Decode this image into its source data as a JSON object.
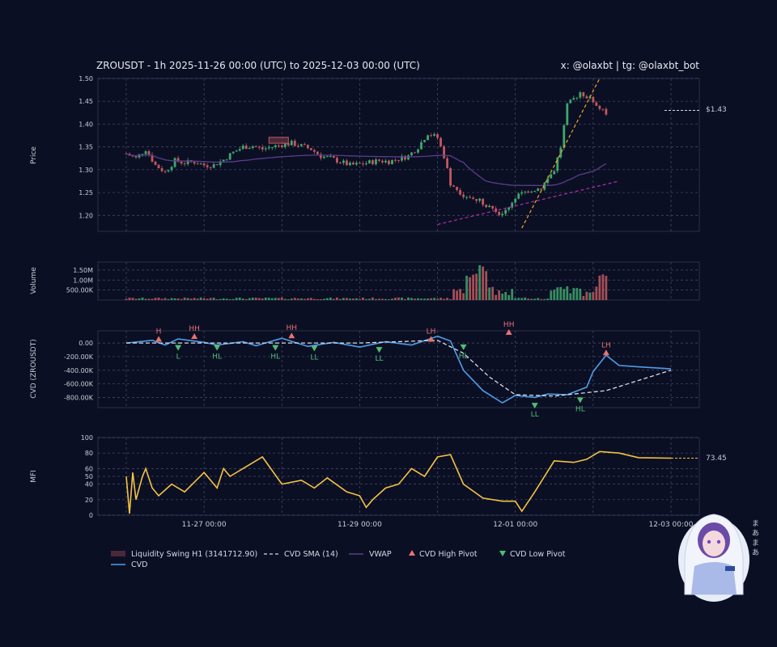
{
  "header": {
    "title": "ZROUSDT - 1h 2025-11-26 00:00 (UTC) to 2025-12-03 00:00 (UTC)",
    "credits": "x: @olaxbt | tg: @olaxbt_bot"
  },
  "panels": {
    "price_label": "Price",
    "volume_label": "Volume",
    "cvd_label": "CVD (ZROUSDT)",
    "mfi_label": "MFI",
    "price_last": "$1.43",
    "mfi_last": "73.45"
  },
  "colors": {
    "background": "#0b0f24",
    "up": "#3fa66c",
    "down": "#c0595e",
    "vwap": "#5a3d8a",
    "cvd": "#4f9de6",
    "cvd_sma": "#d9dbe4",
    "mfi": "#f4c343",
    "pivot_high": "#e8716f",
    "pivot_low": "#4fbf73",
    "trend_orange": "#f5a623",
    "trend_magenta": "#b32ea8"
  },
  "mascot": {
    "caption": "まあまあ"
  },
  "chart_data": [
    {
      "type": "candlestick",
      "name": "Price",
      "ylabel": "Price",
      "ylim": [
        1.165,
        1.5
      ],
      "yticks": [
        "1.20",
        "1.25",
        "1.30",
        "1.35",
        "1.40",
        "1.45",
        "1.50"
      ],
      "x_start": "2025-11-26 00:00",
      "x_end": "2025-12-03 00:00",
      "interval": "1h",
      "close_path": [
        [
          "2025-11-26 00:00",
          1.335
        ],
        [
          "2025-11-26 03:00",
          1.325
        ],
        [
          "2025-11-26 06:00",
          1.345
        ],
        [
          "2025-11-26 09:00",
          1.31
        ],
        [
          "2025-11-26 12:00",
          1.295
        ],
        [
          "2025-11-26 15:00",
          1.32
        ],
        [
          "2025-11-26 18:00",
          1.315
        ],
        [
          "2025-11-26 21:00",
          1.317
        ],
        [
          "2025-11-27 00:00",
          1.31
        ],
        [
          "2025-11-27 03:00",
          1.31
        ],
        [
          "2025-11-27 06:00",
          1.322
        ],
        [
          "2025-11-27 09:00",
          1.338
        ],
        [
          "2025-11-27 12:00",
          1.35
        ],
        [
          "2025-11-27 15:00",
          1.352
        ],
        [
          "2025-11-27 18:00",
          1.345
        ],
        [
          "2025-11-28 00:00",
          1.355
        ],
        [
          "2025-11-28 03:00",
          1.358
        ],
        [
          "2025-11-28 06:00",
          1.352
        ],
        [
          "2025-11-28 09:00",
          1.345
        ],
        [
          "2025-11-28 12:00",
          1.33
        ],
        [
          "2025-11-28 15:00",
          1.325
        ],
        [
          "2025-11-28 21:00",
          1.31
        ],
        [
          "2025-11-29 00:00",
          1.312
        ],
        [
          "2025-11-29 06:00",
          1.32
        ],
        [
          "2025-11-29 09:00",
          1.318
        ],
        [
          "2025-11-29 15:00",
          1.33
        ],
        [
          "2025-11-29 18:00",
          1.35
        ],
        [
          "2025-11-29 21:00",
          1.38
        ],
        [
          "2025-11-30 00:00",
          1.37
        ],
        [
          "2025-11-30 02:00",
          1.33
        ],
        [
          "2025-11-30 04:00",
          1.27
        ],
        [
          "2025-11-30 08:00",
          1.245
        ],
        [
          "2025-11-30 12:00",
          1.235
        ],
        [
          "2025-11-30 16:00",
          1.22
        ],
        [
          "2025-11-30 20:00",
          1.2
        ],
        [
          "2025-12-01 00:00",
          1.24
        ],
        [
          "2025-12-01 04:00",
          1.255
        ],
        [
          "2025-12-01 08:00",
          1.26
        ],
        [
          "2025-12-01 12:00",
          1.3
        ],
        [
          "2025-12-01 14:00",
          1.35
        ],
        [
          "2025-12-01 16:00",
          1.44
        ],
        [
          "2025-12-01 20:00",
          1.47
        ],
        [
          "2025-12-02 00:00",
          1.45
        ],
        [
          "2025-12-02 04:00",
          1.42
        ]
      ],
      "last_price": 1.43,
      "liquidity_zone": {
        "label": "Liquidity Swing H1 (3141712.90)",
        "x": [
          "2025-11-27 20:00",
          "2025-11-28 02:00"
        ],
        "y": [
          1.358,
          1.371
        ]
      }
    },
    {
      "type": "bar",
      "name": "Volume",
      "ylabel": "Volume",
      "ylim": [
        0,
        1900000
      ],
      "yticks": [
        "500.00K",
        "1.00M",
        "1.50M"
      ],
      "peaks": [
        [
          "2025-11-30 10:00",
          1250000
        ],
        [
          "2025-11-30 12:00",
          1550000
        ],
        [
          "2025-11-30 14:00",
          1800000
        ],
        [
          "2025-11-30 16:00",
          700000
        ],
        [
          "2025-12-02 03:00",
          1450000
        ],
        [
          "2025-12-02 05:00",
          900000
        ]
      ]
    },
    {
      "type": "line",
      "name": "CVD",
      "ylabel": "CVD (ZROUSDT)",
      "ylim": [
        -950000,
        180000
      ],
      "yticks": [
        "-800.00K",
        "-600.00K",
        "-400.00K",
        "-200.00K",
        "0.00"
      ],
      "series": [
        {
          "name": "CVD",
          "points": [
            [
              "2025-11-26 00:00",
              0
            ],
            [
              "2025-11-26 08:00",
              40000
            ],
            [
              "2025-11-26 12:00",
              -30000
            ],
            [
              "2025-11-26 16:00",
              60000
            ],
            [
              "2025-11-27 00:00",
              10000
            ],
            [
              "2025-11-27 04:00",
              -30000
            ],
            [
              "2025-11-27 12:00",
              20000
            ],
            [
              "2025-11-27 16:00",
              -40000
            ],
            [
              "2025-11-28 00:00",
              70000
            ],
            [
              "2025-11-28 08:00",
              -50000
            ],
            [
              "2025-11-28 16:00",
              10000
            ],
            [
              "2025-11-29 00:00",
              -60000
            ],
            [
              "2025-11-29 08:00",
              20000
            ],
            [
              "2025-11-29 16:00",
              -30000
            ],
            [
              "2025-11-30 00:00",
              100000
            ],
            [
              "2025-11-30 04:00",
              30000
            ],
            [
              "2025-11-30 08:00",
              -400000
            ],
            [
              "2025-11-30 14:00",
              -700000
            ],
            [
              "2025-11-30 20:00",
              -880000
            ],
            [
              "2025-12-01 00:00",
              -770000
            ],
            [
              "2025-12-01 06:00",
              -800000
            ],
            [
              "2025-12-01 10:00",
              -750000
            ],
            [
              "2025-12-01 16:00",
              -760000
            ],
            [
              "2025-12-01 22:00",
              -650000
            ],
            [
              "2025-12-02 00:00",
              -420000
            ],
            [
              "2025-12-02 04:00",
              -180000
            ],
            [
              "2025-12-02 08:00",
              -330000
            ],
            [
              "2025-12-02 14:00",
              -350000
            ],
            [
              "2025-12-03 00:00",
              -380000
            ]
          ]
        },
        {
          "name": "CVD SMA (14)",
          "points": [
            [
              "2025-11-26 00:00",
              0
            ],
            [
              "2025-11-29 00:00",
              0
            ],
            [
              "2025-11-30 00:00",
              40000
            ],
            [
              "2025-11-30 08:00",
              -150000
            ],
            [
              "2025-11-30 16:00",
              -500000
            ],
            [
              "2025-12-01 00:00",
              -760000
            ],
            [
              "2025-12-01 12:00",
              -780000
            ],
            [
              "2025-12-02 04:00",
              -700000
            ],
            [
              "2025-12-03 00:00",
              -400000
            ]
          ]
        }
      ],
      "pivots": [
        {
          "label": "H",
          "kind": "high",
          "x": "2025-11-26 10:00",
          "y": 20000
        },
        {
          "label": "L",
          "kind": "low",
          "x": "2025-11-26 16:00",
          "y": -30000
        },
        {
          "label": "HH",
          "kind": "high",
          "x": "2025-11-26 21:00",
          "y": 60000
        },
        {
          "label": "HL",
          "kind": "low",
          "x": "2025-11-27 04:00",
          "y": -30000
        },
        {
          "label": "HL",
          "kind": "low",
          "x": "2025-11-27 22:00",
          "y": -30000
        },
        {
          "label": "HH",
          "kind": "high",
          "x": "2025-11-28 03:00",
          "y": 70000
        },
        {
          "label": "LL",
          "kind": "low",
          "x": "2025-11-28 10:00",
          "y": -40000
        },
        {
          "label": "LL",
          "kind": "low",
          "x": "2025-11-29 06:00",
          "y": -60000
        },
        {
          "label": "LH",
          "kind": "high",
          "x": "2025-11-29 22:00",
          "y": 20000
        },
        {
          "label": "HL",
          "kind": "low",
          "x": "2025-11-30 08:00",
          "y": -20000
        },
        {
          "label": "HH",
          "kind": "high",
          "x": "2025-11-30 22:00",
          "y": 120000
        },
        {
          "label": "LL",
          "kind": "low",
          "x": "2025-12-01 06:00",
          "y": -880000
        },
        {
          "label": "HL",
          "kind": "low",
          "x": "2025-12-01 20:00",
          "y": -800000
        },
        {
          "label": "LH",
          "kind": "high",
          "x": "2025-12-02 04:00",
          "y": -180000
        }
      ]
    },
    {
      "type": "line",
      "name": "MFI",
      "ylabel": "MFI",
      "ylim": [
        0,
        100
      ],
      "yticks": [
        "0",
        "20",
        "40",
        "50",
        "60",
        "80",
        "100"
      ],
      "points": [
        [
          "2025-11-26 00:00",
          50
        ],
        [
          "2025-11-26 01:00",
          2
        ],
        [
          "2025-11-26 02:00",
          55
        ],
        [
          "2025-11-26 03:00",
          20
        ],
        [
          "2025-11-26 05:00",
          50
        ],
        [
          "2025-11-26 06:00",
          60
        ],
        [
          "2025-11-26 08:00",
          35
        ],
        [
          "2025-11-26 10:00",
          25
        ],
        [
          "2025-11-26 14:00",
          40
        ],
        [
          "2025-11-26 18:00",
          30
        ],
        [
          "2025-11-27 00:00",
          55
        ],
        [
          "2025-11-27 04:00",
          35
        ],
        [
          "2025-11-27 06:00",
          60
        ],
        [
          "2025-11-27 08:00",
          50
        ],
        [
          "2025-11-27 14:00",
          65
        ],
        [
          "2025-11-27 18:00",
          75
        ],
        [
          "2025-11-28 00:00",
          40
        ],
        [
          "2025-11-28 06:00",
          45
        ],
        [
          "2025-11-28 10:00",
          35
        ],
        [
          "2025-11-28 14:00",
          48
        ],
        [
          "2025-11-28 20:00",
          30
        ],
        [
          "2025-11-29 00:00",
          25
        ],
        [
          "2025-11-29 02:00",
          10
        ],
        [
          "2025-11-29 04:00",
          20
        ],
        [
          "2025-11-29 08:00",
          35
        ],
        [
          "2025-11-29 12:00",
          40
        ],
        [
          "2025-11-29 16:00",
          60
        ],
        [
          "2025-11-29 20:00",
          50
        ],
        [
          "2025-11-30 00:00",
          75
        ],
        [
          "2025-11-30 04:00",
          78
        ],
        [
          "2025-11-30 08:00",
          40
        ],
        [
          "2025-11-30 14:00",
          22
        ],
        [
          "2025-11-30 20:00",
          18
        ],
        [
          "2025-12-01 00:00",
          18
        ],
        [
          "2025-12-01 02:00",
          5
        ],
        [
          "2025-12-01 06:00",
          30
        ],
        [
          "2025-12-01 12:00",
          70
        ],
        [
          "2025-12-01 18:00",
          68
        ],
        [
          "2025-12-01 22:00",
          72
        ],
        [
          "2025-12-02 02:00",
          82
        ],
        [
          "2025-12-02 08:00",
          80
        ],
        [
          "2025-12-02 14:00",
          74
        ],
        [
          "2025-12-03 00:00",
          73.45
        ]
      ]
    }
  ],
  "x_axis": {
    "ticks": [
      "11-27 00:00",
      "11-29 00:00",
      "12-01 00:00",
      "12-03 00:00"
    ]
  },
  "legend": [
    {
      "label": "Liquidity Swing H1 (3141712.90)",
      "swatch": "zone"
    },
    {
      "label": "CVD SMA (14)",
      "swatch": "dash"
    },
    {
      "label": "VWAP",
      "swatch": "vwap"
    },
    {
      "label": "CVD High Pivot",
      "swatch": "tri-up"
    },
    {
      "label": "CVD Low Pivot",
      "swatch": "tri-down"
    },
    {
      "label": "CVD",
      "swatch": "cvd"
    }
  ]
}
